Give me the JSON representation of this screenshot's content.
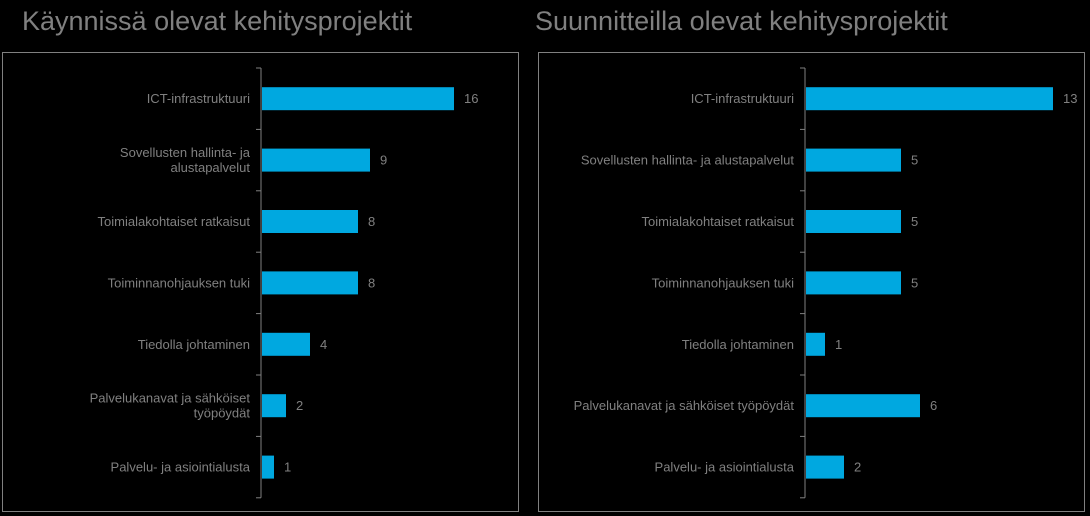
{
  "colors": {
    "background": "#000000",
    "bar": "#00A8E0",
    "text": "#808080",
    "axis": "#808080"
  },
  "chart_data": [
    {
      "type": "bar",
      "orientation": "horizontal",
      "title": "Käynnissä olevat kehitysprojektit",
      "categories": [
        "ICT-infrastruktuuri",
        "Sovellusten hallinta- ja alustapalvelut",
        "Toimialakohtaiset ratkaisut",
        "Toiminnanohjauksen tuki",
        "Tiedolla johtaminen",
        "Palvelukanavat ja sähköiset työpöydät",
        "Palvelu- ja asiointialusta"
      ],
      "values": [
        16,
        9,
        8,
        8,
        4,
        2,
        1
      ],
      "data_labels": true,
      "grid": false,
      "legend": "none"
    },
    {
      "type": "bar",
      "orientation": "horizontal",
      "title": "Suunnitteilla olevat kehitysprojektit",
      "categories": [
        "ICT-infrastruktuuri",
        "Sovellusten hallinta- ja alustapalvelut",
        "Toimialakohtaiset ratkaisut",
        "Toiminnanohjauksen tuki",
        "Tiedolla johtaminen",
        "Palvelukanavat ja sähköiset työpöydät",
        "Palvelu- ja asiointialusta"
      ],
      "values": [
        13,
        5,
        5,
        5,
        1,
        6,
        2
      ],
      "data_labels": true,
      "grid": false,
      "legend": "none"
    }
  ]
}
